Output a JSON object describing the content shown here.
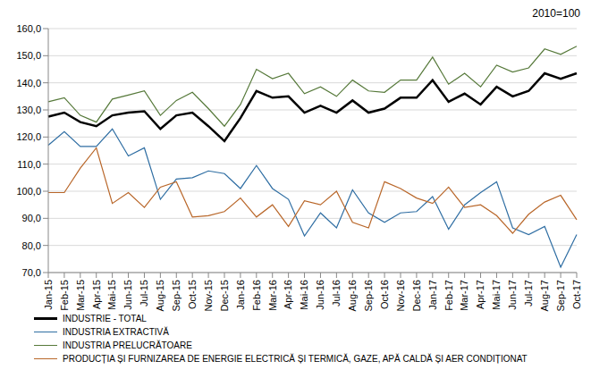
{
  "chart_data": {
    "type": "line",
    "annotations": [
      "2010=100"
    ],
    "categories": [
      "Jan-15",
      "Feb-15",
      "Mar-15",
      "Apr-15",
      "Mai-15",
      "Jun-15",
      "Jul-15",
      "Aug-15",
      "Sep-15",
      "Oct-15",
      "Nov-15",
      "Dec-15",
      "Jan-16",
      "Feb-16",
      "Mar-16",
      "Apr-16",
      "Mai-16",
      "Jun-16",
      "Jul-16",
      "Aug-16",
      "Sep-16",
      "Oct-16",
      "Nov-16",
      "Dec-16",
      "Jan-17",
      "Feb-17",
      "Mar-17",
      "Apr-17",
      "Mai-17",
      "Jun-17",
      "Jul-17",
      "Aug-17",
      "Sep-17",
      "Oct-17"
    ],
    "series": [
      {
        "name": "INDUSTRIE - TOTAL",
        "color": "#000000",
        "values": [
          127.5,
          129,
          125.5,
          124,
          128,
          129,
          129.5,
          123,
          128,
          129,
          124,
          118.5,
          127,
          137,
          134.5,
          135,
          129,
          131.5,
          129,
          133.5,
          129,
          130.5,
          134.5,
          134.5,
          141,
          133,
          136,
          132,
          138.5,
          135,
          137,
          143.5,
          141.5,
          143.5
        ]
      },
      {
        "name": "INDUSTRIA EXTRACTIVĂ",
        "color": "#2f6ea3",
        "values": [
          117,
          122,
          116.5,
          116.5,
          123,
          113,
          116,
          97,
          104.5,
          105,
          107.5,
          106.5,
          101,
          109.5,
          101,
          97,
          83.5,
          92,
          86.5,
          100.5,
          92,
          88.5,
          92,
          92.5,
          98,
          86,
          95,
          99.5,
          103.5,
          86.5,
          84,
          87,
          72,
          84
        ]
      },
      {
        "name": "INDUSTRIA PRELUCRĂTOARE",
        "color": "#56793a",
        "values": [
          133,
          134.5,
          128,
          125.5,
          134,
          135.5,
          137,
          128,
          133.5,
          136.5,
          130.5,
          124,
          132,
          145,
          141.5,
          143.5,
          136,
          138.5,
          135,
          141,
          137,
          136.5,
          141,
          141,
          149.5,
          139.5,
          143.5,
          138.5,
          146.5,
          144,
          145.5,
          152.5,
          150.5,
          153.5
        ]
      },
      {
        "name": "PRODUCȚIA ȘI FURNIZAREA DE ENERGIE ELECTRICĂ ȘI TERMICĂ, GAZE, APĂ CALDĂ ȘI AER CONDIȚIONAT",
        "color": "#b9672a",
        "values": [
          99.5,
          99.5,
          108.5,
          116,
          95.5,
          99.5,
          94,
          101.5,
          103.5,
          90.5,
          91,
          92.5,
          97.5,
          90.5,
          95,
          87,
          96.5,
          95,
          100,
          88.5,
          86.5,
          103.5,
          101,
          97.5,
          95.5,
          101.5,
          94,
          95,
          91,
          84.5,
          91.5,
          96,
          98.5,
          89.5
        ]
      }
    ],
    "ylim": [
      70,
      160
    ],
    "yticks": [
      {
        "value": 70,
        "label": "70,0"
      },
      {
        "value": 80,
        "label": "80,0"
      },
      {
        "value": 90,
        "label": "90,0"
      },
      {
        "value": 100,
        "label": "100,0"
      },
      {
        "value": 110,
        "label": "110,0"
      },
      {
        "value": 120,
        "label": "120,0"
      },
      {
        "value": 130,
        "label": "130,0"
      },
      {
        "value": 140,
        "label": "140,0"
      },
      {
        "value": 150,
        "label": "150,0"
      },
      {
        "value": 160,
        "label": "160,0"
      }
    ],
    "grid": true,
    "legend": "bottom-left"
  }
}
